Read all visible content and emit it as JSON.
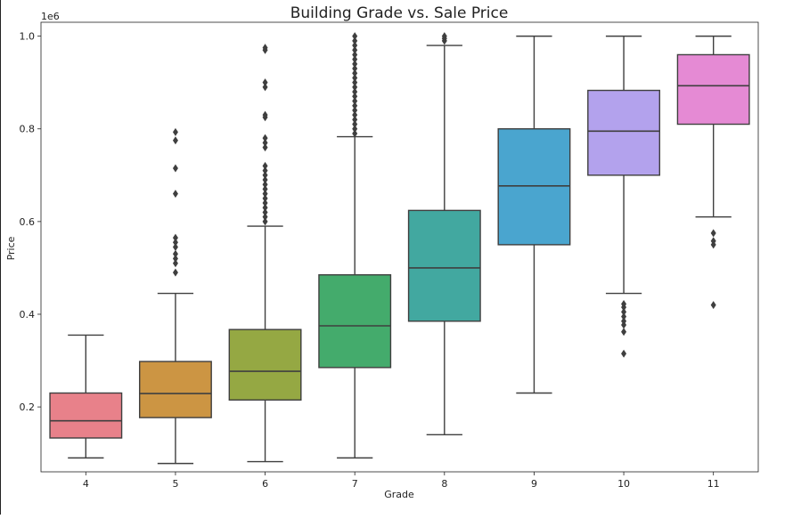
{
  "chart_data": {
    "type": "box",
    "title": "Building Grade vs. Sale Price",
    "xlabel": "Grade",
    "ylabel": "Price",
    "y_offset_text": "1e6",
    "ylim": [
      0.06,
      1.03
    ],
    "y_ticks": [
      0.2,
      0.4,
      0.6,
      0.8,
      1.0
    ],
    "y_tick_labels": [
      "0.2",
      "0.4",
      "0.6",
      "0.8",
      "1.0"
    ],
    "grid": false,
    "legend": "none",
    "categories": [
      "4",
      "5",
      "6",
      "7",
      "8",
      "9",
      "10",
      "11"
    ],
    "boxes": [
      {
        "category": "4",
        "whislo": 0.09,
        "q1": 0.133,
        "med": 0.17,
        "q3": 0.23,
        "whishi": 0.355,
        "fliers": [],
        "color": "#e8818a"
      },
      {
        "category": "5",
        "whislo": 0.078,
        "q1": 0.177,
        "med": 0.229,
        "q3": 0.298,
        "whishi": 0.445,
        "fliers": [
          0.49,
          0.51,
          0.52,
          0.53,
          0.545,
          0.555,
          0.565,
          0.66,
          0.715,
          0.775,
          0.793
        ],
        "color": "#cc9543"
      },
      {
        "category": "6",
        "whislo": 0.082,
        "q1": 0.215,
        "med": 0.277,
        "q3": 0.367,
        "whishi": 0.59,
        "fliers": [
          0.6,
          0.61,
          0.62,
          0.63,
          0.64,
          0.65,
          0.66,
          0.67,
          0.68,
          0.69,
          0.7,
          0.71,
          0.72,
          0.76,
          0.77,
          0.78,
          0.825,
          0.83,
          0.89,
          0.9,
          0.97,
          0.975
        ],
        "color": "#95a843"
      },
      {
        "category": "7",
        "whislo": 0.09,
        "q1": 0.285,
        "med": 0.375,
        "q3": 0.485,
        "whishi": 0.783,
        "fliers": [
          0.79,
          0.8,
          0.81,
          0.82,
          0.83,
          0.84,
          0.85,
          0.86,
          0.87,
          0.88,
          0.89,
          0.9,
          0.91,
          0.92,
          0.93,
          0.94,
          0.95,
          0.96,
          0.97,
          0.98,
          0.99,
          1.0
        ],
        "color": "#44ab6c"
      },
      {
        "category": "8",
        "whislo": 0.14,
        "q1": 0.385,
        "med": 0.5,
        "q3": 0.624,
        "whishi": 0.98,
        "fliers": [
          0.99,
          0.995,
          1.0
        ],
        "color": "#42a8a0"
      },
      {
        "category": "9",
        "whislo": 0.23,
        "q1": 0.55,
        "med": 0.677,
        "q3": 0.8,
        "whishi": 1.0,
        "fliers": [],
        "color": "#4aa5cf"
      },
      {
        "category": "10",
        "whislo": 0.445,
        "q1": 0.7,
        "med": 0.795,
        "q3": 0.883,
        "whishi": 1.0,
        "fliers": [
          0.315,
          0.362,
          0.377,
          0.385,
          0.395,
          0.405,
          0.415,
          0.422
        ],
        "color": "#b3a2ed"
      },
      {
        "category": "11",
        "whislo": 0.61,
        "q1": 0.81,
        "med": 0.893,
        "q3": 0.96,
        "whishi": 1.0,
        "fliers": [
          0.42,
          0.55,
          0.558,
          0.575
        ],
        "color": "#e58ad4"
      }
    ]
  }
}
